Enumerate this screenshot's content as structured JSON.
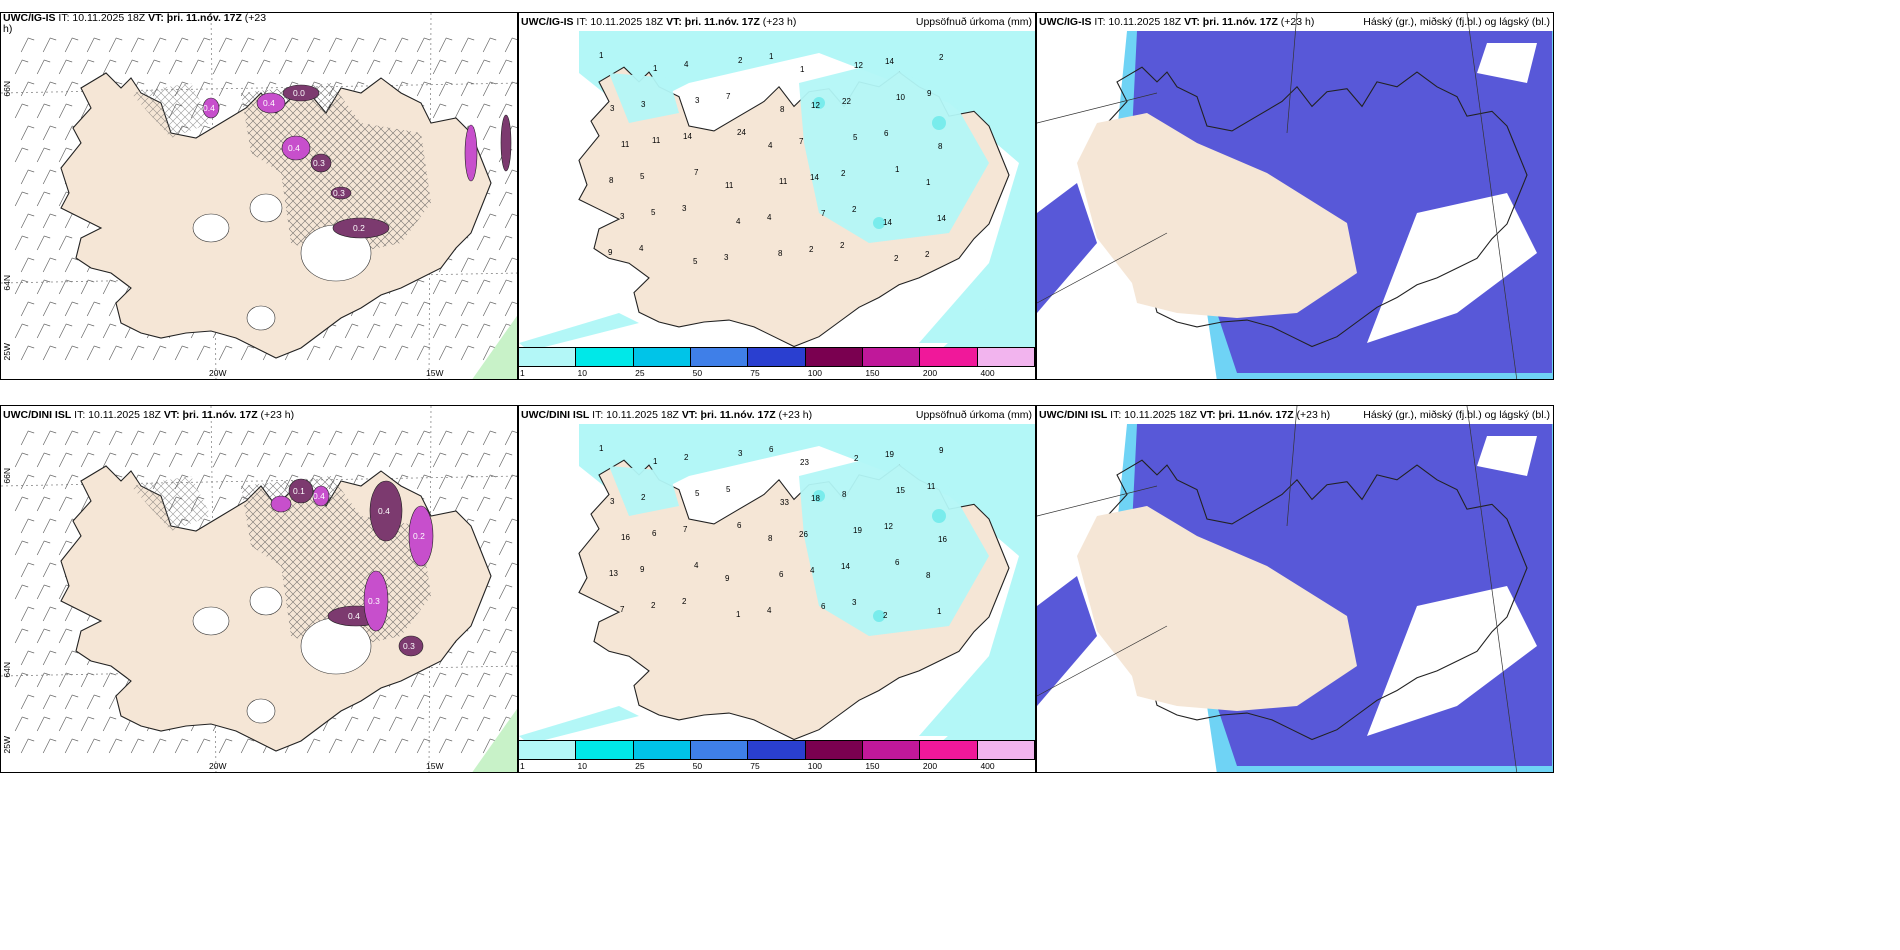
{
  "panels": {
    "p1": {
      "model": "UWC/IG-IS",
      "rest": " IT: 10.11.2025 18Z ",
      "vt": "VT: þri. 11.nóv. 17Z",
      "lead": " (+23",
      "wrap": "h)",
      "right": ""
    },
    "p2": {
      "model": "UWC/IG-IS",
      "rest": " IT: 10.11.2025 18Z ",
      "vt": "VT: þri. 11.nóv. 17Z",
      "lead": " (+23 h)",
      "right": "Uppsöfnuð úrkoma (mm)"
    },
    "p3": {
      "model": "UWC/IG-IS",
      "rest": " IT: 10.11.2025 18Z ",
      "vt": "VT: þri. 11.nóv. 17Z",
      "lead": " (+23 h)",
      "right": "Háský (gr.), miðský (fj.bl.) og lágský (bl.)"
    },
    "p4": {
      "model": "UWC/DINI ISL",
      "rest": " IT: 10.11.2025 18Z ",
      "vt": "VT: þri. 11.nóv. 17Z",
      "lead": " (+23 h)",
      "right": ""
    },
    "p5": {
      "model": "UWC/DINI ISL",
      "rest": " IT: 10.11.2025 18Z ",
      "vt": "VT: þri. 11.nóv. 17Z",
      "lead": " (+23 h)",
      "right": "Uppsöfnuð úrkoma (mm)"
    },
    "p6": {
      "model": "UWC/DINI ISL",
      "rest": " IT: 10.11.2025 18Z ",
      "vt": "VT: þri. 11.nóv. 17Z",
      "lead": " (+23 h)",
      "right": "Háský (gr.), miðský (fj.bl.) og lágský (bl.)"
    }
  },
  "graticule": {
    "lon_a": "20W",
    "lon_b": "15W",
    "lat_a": "66N",
    "lat_b": "64N",
    "lat_c": "25W"
  },
  "colorbar": {
    "ticks": [
      "1",
      "10",
      "25",
      "50",
      "75",
      "100",
      "150",
      "200",
      "400"
    ],
    "colors": [
      "#b3f7f7",
      "#00e8e8",
      "#00c4e8",
      "#3f7fe8",
      "#2a3fd0",
      "#7a0050",
      "#c0189a",
      "#f0189a",
      "#f2b4ee"
    ]
  },
  "precip_labels_top": [
    "1",
    "1",
    "4",
    "2",
    "1",
    "1",
    "12",
    "14",
    "2",
    "3",
    "3",
    "3",
    "7",
    "8",
    "12",
    "22",
    "10",
    "9",
    "11",
    "11",
    "14",
    "24",
    "4",
    "7",
    "5",
    "6",
    "8",
    "8",
    "5",
    "7",
    "11",
    "11",
    "14",
    "2",
    "1",
    "1",
    "3",
    "5",
    "3",
    "4",
    "4",
    "7",
    "2",
    "14",
    "14",
    "9",
    "4",
    "5",
    "3",
    "8",
    "2",
    "2",
    "2",
    "2"
  ],
  "precip_labels_bot": [
    "1",
    "1",
    "2",
    "3",
    "6",
    "23",
    "2",
    "19",
    "9",
    "3",
    "2",
    "5",
    "5",
    "33",
    "18",
    "8",
    "15",
    "11",
    "16",
    "6",
    "7",
    "6",
    "8",
    "26",
    "19",
    "12",
    "16",
    "13",
    "9",
    "4",
    "9",
    "6",
    "4",
    "14",
    "6",
    "8",
    "7",
    "2",
    "2",
    "1",
    "4",
    "6",
    "3",
    "2",
    "1"
  ],
  "icing_labels_top": [
    "0.2",
    "0.4",
    "0.3",
    "0.4",
    "0.0",
    "0.4",
    "0.3"
  ],
  "icing_labels_bot": [
    "0.4",
    "0.3",
    "0.4",
    "0.2",
    "0.1",
    "0.4",
    "0.3"
  ],
  "map_colors": {
    "land": "#f5e6d6",
    "precip": "#b3f7f7",
    "precip2": "#79ecec",
    "cloud_low": "#5858d8",
    "cloud_mid": "#3a8bf0",
    "cloud_high": "#6fd3f5",
    "icing": "#c74fcc",
    "icing_dark": "#7c3a6f",
    "grass": "#c8f2c8"
  }
}
